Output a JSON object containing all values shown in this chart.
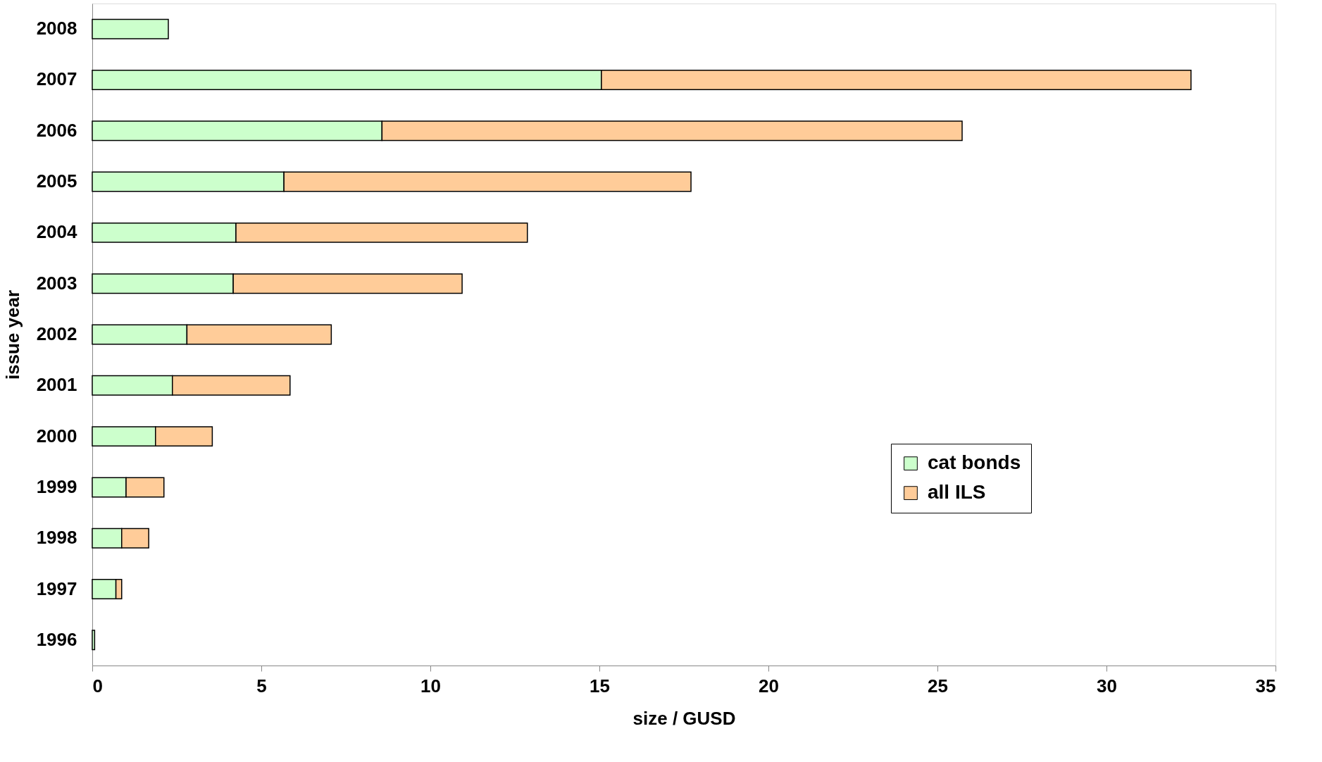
{
  "chart_data": {
    "type": "bar",
    "orientation": "horizontal",
    "stacked": true,
    "xlabel": "size / GUSD",
    "ylabel": "issue year",
    "categories": [
      "2008",
      "2007",
      "2006",
      "2005",
      "2004",
      "2003",
      "2002",
      "2001",
      "2000",
      "1999",
      "1998",
      "1997",
      "1996"
    ],
    "series": [
      {
        "name": "cat bonds",
        "color": "#ccffcc",
        "values": [
          2.25,
          15.06,
          8.57,
          5.67,
          4.25,
          4.17,
          2.8,
          2.37,
          1.87,
          1.0,
          0.87,
          0.7,
          0.07
        ]
      },
      {
        "name": "all ILS",
        "color": "#ffcc99",
        "values": [
          null,
          17.44,
          17.16,
          12.04,
          8.62,
          6.77,
          4.27,
          3.48,
          1.68,
          1.12,
          0.8,
          0.17,
          null
        ]
      }
    ],
    "xlim": [
      0,
      35
    ],
    "xticks": [
      0,
      5,
      10,
      15,
      20,
      25,
      30,
      35
    ],
    "grid": false,
    "legend": "right"
  }
}
